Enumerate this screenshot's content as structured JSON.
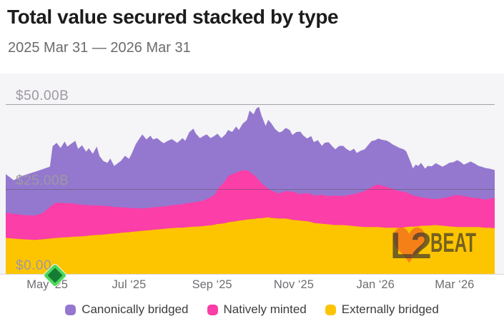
{
  "header": {
    "title": "Total value secured stacked by type",
    "subtitle": "2025 Mar 31 — 2026 Mar 31"
  },
  "colors": {
    "plot_bg": "#f5f4f6",
    "grid": "#55525e",
    "baseline": "#d7d5d9",
    "y_tick_label": "#9d99a1",
    "x_tick_label": "#6e6e72",
    "title": "#1c1c1c",
    "subtitle": "#6b6b6b",
    "legend_text": "#3d3d3d",
    "canonical": "#9478cf",
    "native": "#fb3ea8",
    "external": "#fdc500"
  },
  "chart_data": {
    "type": "area",
    "stacked": true,
    "title": "Total value secured stacked by type",
    "x_start": "2025-03-31",
    "x_end": "2026-03-31",
    "unit": "USD billions",
    "ylim": [
      0,
      50
    ],
    "grid": true,
    "legend_position": "bottom",
    "y_ticks": [
      {
        "value": 50,
        "label": "$50.00B"
      },
      {
        "value": 25,
        "label": "$25.00B"
      },
      {
        "value": 0,
        "label": "$0.00"
      }
    ],
    "x_ticks": [
      {
        "day": 31,
        "label": "May ‘25"
      },
      {
        "day": 92,
        "label": "Jul ‘25"
      },
      {
        "day": 154,
        "label": "Sep ‘25"
      },
      {
        "day": 215,
        "label": "Nov ‘25"
      },
      {
        "day": 276,
        "label": "Jan ‘26"
      },
      {
        "day": 335,
        "label": "Mar ‘26"
      }
    ],
    "x_days": [
      0,
      6,
      12,
      17,
      22,
      28,
      33,
      35,
      38,
      41,
      44,
      46,
      49,
      52,
      54,
      57,
      60,
      62,
      65,
      68,
      70,
      73,
      76,
      78,
      81,
      84,
      86,
      89,
      92,
      94,
      97,
      100,
      102,
      105,
      108,
      110,
      113,
      116,
      118,
      121,
      124,
      128,
      132,
      134,
      137,
      140,
      142,
      145,
      148,
      150,
      153,
      156,
      158,
      161,
      164,
      166,
      169,
      172,
      174,
      177,
      180,
      182,
      185,
      187,
      189,
      191,
      194,
      196,
      198,
      201,
      204,
      206,
      209,
      212,
      214,
      217,
      220,
      222,
      225,
      228,
      230,
      233,
      236,
      238,
      241,
      244,
      246,
      249,
      252,
      254,
      257,
      260,
      262,
      265,
      268,
      270,
      273,
      276,
      278,
      281,
      284,
      286,
      289,
      291,
      294,
      297,
      299,
      302,
      304,
      306,
      308,
      310,
      313,
      315,
      318,
      321,
      323,
      326,
      329,
      331,
      334,
      337,
      339,
      342,
      345,
      347,
      350,
      353,
      355,
      358,
      361,
      363,
      365
    ],
    "series": [
      {
        "name": "Externally bridged",
        "color": "#fdc500",
        "values": [
          10.6,
          10.4,
          10.2,
          10.1,
          10.0,
          10.2,
          10.4,
          10.5,
          10.6,
          10.7,
          10.8,
          10.8,
          10.9,
          11.0,
          11.0,
          11.1,
          11.2,
          11.3,
          11.4,
          11.5,
          11.5,
          11.6,
          11.7,
          11.8,
          11.9,
          12.0,
          12.1,
          12.2,
          12.3,
          12.4,
          12.5,
          12.6,
          12.7,
          12.8,
          12.9,
          13.0,
          13.1,
          13.2,
          13.3,
          13.4,
          13.5,
          13.6,
          13.6,
          13.7,
          13.8,
          13.9,
          13.9,
          14.0,
          14.1,
          14.2,
          14.3,
          14.5,
          14.7,
          14.8,
          15.0,
          15.2,
          15.4,
          15.5,
          15.7,
          15.8,
          16.0,
          16.1,
          16.2,
          16.3,
          16.4,
          16.4,
          16.6,
          16.7,
          16.5,
          16.4,
          16.3,
          16.3,
          16.3,
          16.1,
          15.9,
          15.8,
          15.7,
          15.6,
          15.5,
          15.3,
          15.0,
          14.9,
          14.8,
          14.7,
          14.6,
          14.5,
          14.4,
          14.4,
          14.4,
          14.3,
          14.2,
          14.1,
          14.0,
          13.9,
          13.8,
          13.8,
          13.8,
          13.8,
          13.8,
          13.7,
          13.6,
          13.6,
          13.6,
          13.6,
          13.6,
          13.7,
          13.8,
          13.9,
          13.9,
          14.0,
          14.0,
          14.2,
          14.2,
          14.2,
          14.3,
          14.4,
          14.3,
          14.2,
          14.1,
          14.0,
          13.9,
          13.8,
          13.8,
          13.8,
          13.8,
          13.8,
          13.8,
          13.8,
          13.7,
          13.6,
          13.6,
          13.5,
          13.5
        ]
      },
      {
        "name": "Natively minted",
        "color": "#fb3ea8",
        "values": [
          7.4,
          7.3,
          7.2,
          7.2,
          7.2,
          7.8,
          9.3,
          9.9,
          10.4,
          10.2,
          10.1,
          10.0,
          9.9,
          9.7,
          9.5,
          9.3,
          9.1,
          8.9,
          8.8,
          8.7,
          8.6,
          8.4,
          8.3,
          8.1,
          7.8,
          7.7,
          7.5,
          7.4,
          7.2,
          7.0,
          6.9,
          6.7,
          6.6,
          6.6,
          6.6,
          6.6,
          6.6,
          6.6,
          6.6,
          6.6,
          6.7,
          6.8,
          6.9,
          7.1,
          7.1,
          7.2,
          7.3,
          7.4,
          7.6,
          7.8,
          8.3,
          8.8,
          10.1,
          11.4,
          12.5,
          13.6,
          14.0,
          14.3,
          14.5,
          14.7,
          14.5,
          14.0,
          13.0,
          12.3,
          11.2,
          10.3,
          9.1,
          8.4,
          8.1,
          7.7,
          7.4,
          7.7,
          8.1,
          8.2,
          8.3,
          8.1,
          7.8,
          8.1,
          8.3,
          8.2,
          8.1,
          8.3,
          8.5,
          8.4,
          8.3,
          8.5,
          8.7,
          8.6,
          8.5,
          8.8,
          9.1,
          9.4,
          9.7,
          10.2,
          10.6,
          11.1,
          11.7,
          12.3,
          12.5,
          12.3,
          12.1,
          11.8,
          11.4,
          11.1,
          10.8,
          10.5,
          10.2,
          9.6,
          9.3,
          8.9,
          8.8,
          8.3,
          8.2,
          8.1,
          7.8,
          7.6,
          7.8,
          8.1,
          8.4,
          8.7,
          9.1,
          9.5,
          9.3,
          9.1,
          8.9,
          8.7,
          8.6,
          8.5,
          8.4,
          8.3,
          8.5,
          8.8,
          9.0
        ]
      },
      {
        "name": "Canonically bridged",
        "color": "#9478cf",
        "values": [
          11.4,
          9.9,
          11.4,
          12.2,
          12.9,
          12.9,
          11.9,
          17.2,
          17.6,
          16.2,
          18.1,
          16.7,
          17.6,
          18.5,
          16.3,
          17.5,
          15.7,
          16.8,
          15.2,
          17.3,
          14.6,
          13.2,
          12.7,
          14.1,
          12.1,
          13.0,
          13.7,
          15.2,
          14.4,
          16.0,
          18.8,
          20.7,
          21.8,
          20.2,
          21.2,
          20.0,
          20.3,
          19.2,
          18.6,
          19.2,
          19.5,
          18.2,
          19.5,
          18.4,
          20.8,
          21.7,
          20.1,
          18.6,
          19.0,
          19.1,
          17.4,
          17.4,
          16.5,
          13.8,
          13.6,
          13.6,
          12.4,
          13.6,
          12.2,
          13.8,
          14.8,
          18.0,
          17.8,
          20.1,
          21.6,
          19.9,
          17.9,
          20.3,
          19.9,
          18.6,
          18.0,
          17.9,
          18.6,
          18.1,
          16.7,
          17.9,
          18.4,
          17.1,
          16.1,
          17.1,
          15.7,
          16.2,
          14.4,
          15.5,
          15.9,
          14.5,
          13.6,
          14.7,
          14.8,
          13.8,
          12.9,
          13.4,
          11.9,
          12.2,
          12.3,
          12.8,
          13.6,
          13.3,
          13.6,
          13.5,
          13.6,
          13.5,
          13.1,
          13.0,
          12.7,
          12.5,
          12.1,
          9.7,
          7.9,
          9.3,
          9.0,
          10.2,
          8.6,
          9.5,
          9.6,
          10.6,
          10.1,
          9.3,
          9.7,
          10.0,
          9.9,
          10.2,
          10.0,
          9.3,
          10.0,
          10.6,
          10.1,
          9.5,
          9.5,
          9.3,
          8.9,
          8.5,
          8.1
        ]
      }
    ]
  },
  "legend": {
    "items": [
      {
        "label": "Canonically bridged",
        "color": "#9478cf"
      },
      {
        "label": "Natively minted",
        "color": "#fb3ea8"
      },
      {
        "label": "Externally bridged",
        "color": "#fdc500"
      }
    ]
  },
  "marker": {
    "day": 37,
    "fill": "#177c33",
    "border": "#4bd85c"
  },
  "watermark": {
    "l2": "L2",
    "beat": "BEAT",
    "heart_color": "#f4731c",
    "text_color": "#3c3830"
  }
}
